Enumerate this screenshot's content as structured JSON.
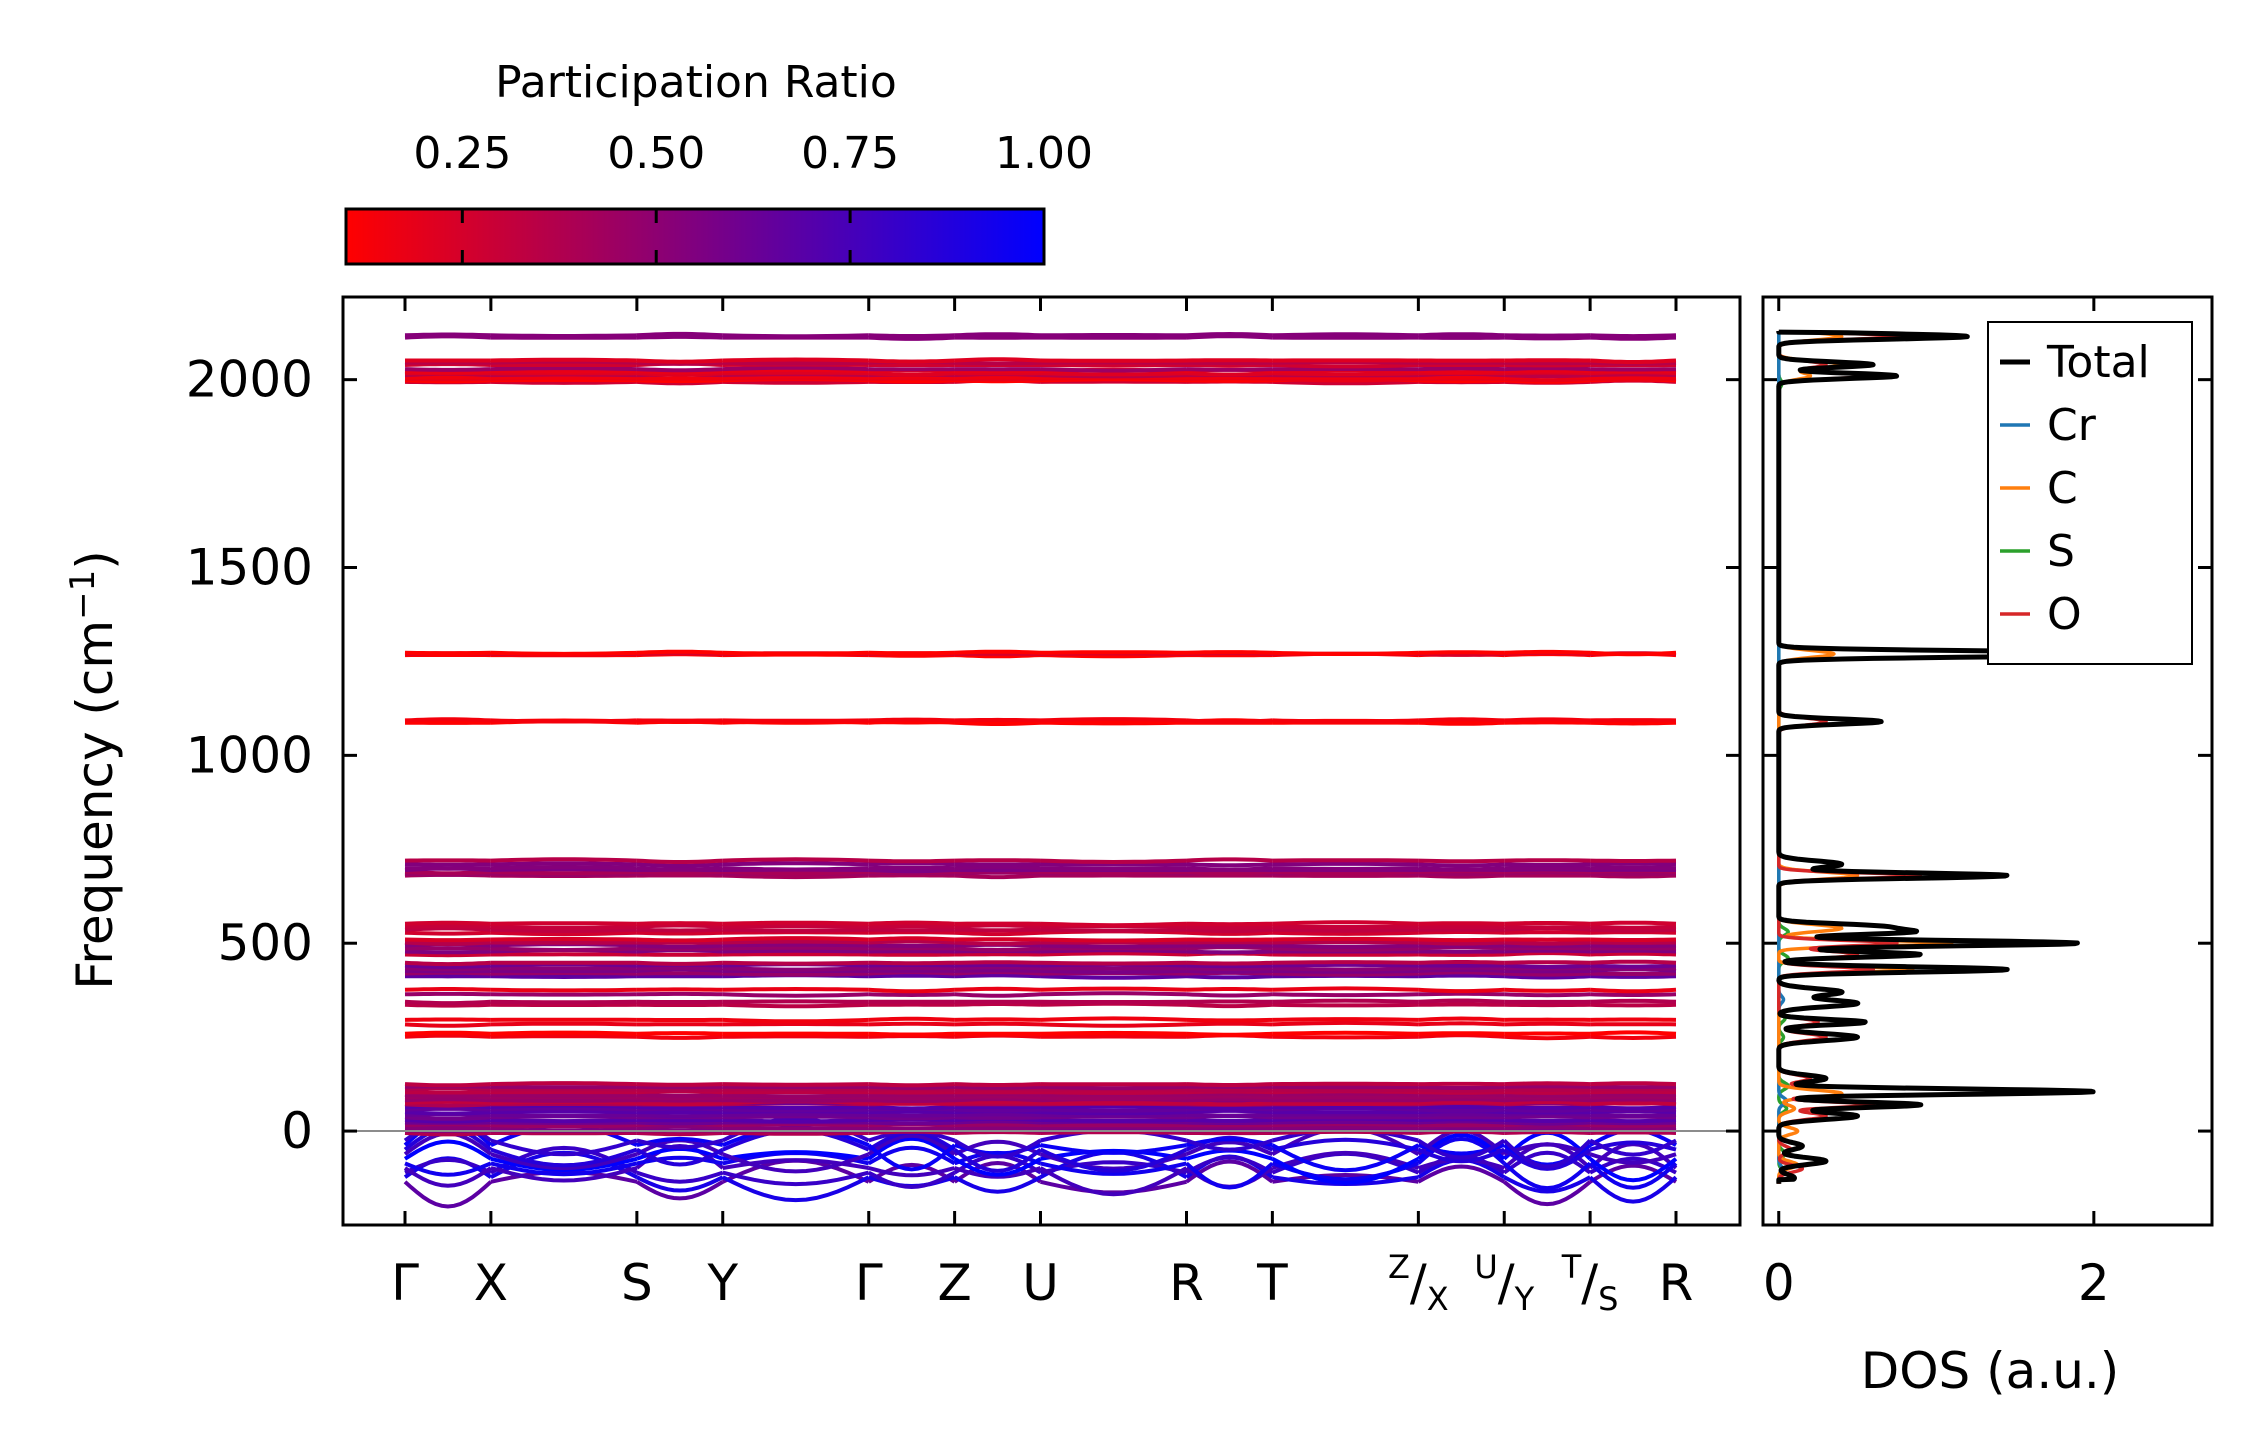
{
  "colors": {
    "cmap_low": "#ff0000",
    "cmap_high": "#0000ff",
    "total": "#000000",
    "Cr": "#1f77b4",
    "C": "#ff7f0e",
    "S": "#2ca02c",
    "O": "#d62728"
  },
  "colorbar": {
    "title": "Participation Ratio",
    "range": [
      0.1,
      1.0
    ],
    "ticks": [
      0.25,
      0.5,
      0.75,
      1.0
    ],
    "tick_labels": [
      "0.25",
      "0.50",
      "0.75",
      "1.00"
    ]
  },
  "chart_data": [
    {
      "type": "line",
      "title": "",
      "ylabel_main": "Frequency (cm",
      "ylabel_sup": "−1",
      "ylabel_end": ")",
      "ylim": [
        -250,
        2220
      ],
      "yticks": [
        0,
        500,
        1000,
        1500,
        2000
      ],
      "ytick_labels": [
        "0",
        "500",
        "1000",
        "1500",
        "2000"
      ],
      "kpoints": [
        {
          "pos": 0.0,
          "label": "Γ"
        },
        {
          "pos": 1.0,
          "label": "X"
        },
        {
          "pos": 2.7,
          "label": "S"
        },
        {
          "pos": 3.7,
          "label": "Y"
        },
        {
          "pos": 5.4,
          "label": "Γ"
        },
        {
          "pos": 6.4,
          "label": "Z"
        },
        {
          "pos": 7.4,
          "label": "U"
        },
        {
          "pos": 9.1,
          "label": "R"
        },
        {
          "pos": 10.1,
          "label": "T"
        },
        {
          "pos": 11.8,
          "label": "Z/X",
          "sup": "Z",
          "sub": "X"
        },
        {
          "pos": 12.8,
          "label": "U/Y",
          "sup": "U",
          "sub": "Y"
        },
        {
          "pos": 13.8,
          "label": "T/S",
          "sup": "T",
          "sub": "S"
        },
        {
          "pos": 14.8,
          "label": "R"
        }
      ],
      "band_groups": [
        {
          "center": -80,
          "spread": 55,
          "count": 10,
          "pr": 0.85,
          "dispersive": true
        },
        {
          "center": 40,
          "spread": 45,
          "count": 14,
          "pr": 0.55
        },
        {
          "center": 100,
          "spread": 25,
          "count": 8,
          "pr": 0.35
        },
        {
          "center": 255,
          "spread": 4,
          "count": 2,
          "pr": 0.15
        },
        {
          "center": 290,
          "spread": 6,
          "count": 2,
          "pr": 0.25
        },
        {
          "center": 340,
          "spread": 4,
          "count": 2,
          "pr": 0.45
        },
        {
          "center": 370,
          "spread": 6,
          "count": 2,
          "pr": 0.3
        },
        {
          "center": 430,
          "spread": 18,
          "count": 6,
          "pr": 0.5
        },
        {
          "center": 490,
          "spread": 20,
          "count": 6,
          "pr": 0.4
        },
        {
          "center": 540,
          "spread": 12,
          "count": 4,
          "pr": 0.3
        },
        {
          "center": 690,
          "spread": 10,
          "count": 5,
          "pr": 0.45
        },
        {
          "center": 715,
          "spread": 5,
          "count": 2,
          "pr": 0.5
        },
        {
          "center": 1090,
          "spread": 3,
          "count": 3,
          "pr": 0.1
        },
        {
          "center": 1270,
          "spread": 3,
          "count": 3,
          "pr": 0.12
        },
        {
          "center": 2000,
          "spread": 6,
          "count": 4,
          "pr": 0.2
        },
        {
          "center": 2020,
          "spread": 8,
          "count": 4,
          "pr": 0.28
        },
        {
          "center": 2045,
          "spread": 6,
          "count": 3,
          "pr": 0.25
        },
        {
          "center": 2115,
          "spread": 3,
          "count": 2,
          "pr": 0.55
        }
      ]
    },
    {
      "type": "line",
      "title": "",
      "xlabel": "DOS (a.u.)",
      "xlim": [
        -0.1,
        2.75
      ],
      "xticks": [
        0,
        2
      ],
      "xtick_labels": [
        "0",
        "2"
      ],
      "ylim": [
        -250,
        2220
      ],
      "legend": {
        "position": "top-right",
        "entries": [
          "Total",
          "Cr",
          "C",
          "S",
          "O"
        ]
      },
      "series": [
        {
          "name": "Total",
          "peaks": [
            [
              -125,
              0.1
            ],
            [
              -80,
              0.3
            ],
            [
              -40,
              0.15
            ],
            [
              40,
              0.5
            ],
            [
              70,
              0.9
            ],
            [
              105,
              2.0
            ],
            [
              140,
              0.3
            ],
            [
              250,
              0.5
            ],
            [
              290,
              0.55
            ],
            [
              340,
              0.5
            ],
            [
              370,
              0.4
            ],
            [
              430,
              1.45
            ],
            [
              470,
              0.9
            ],
            [
              500,
              1.9
            ],
            [
              530,
              0.8
            ],
            [
              545,
              0.6
            ],
            [
              680,
              1.45
            ],
            [
              710,
              0.4
            ],
            [
              1090,
              0.65
            ],
            [
              1270,
              2.6
            ],
            [
              2010,
              0.75
            ],
            [
              2040,
              0.6
            ],
            [
              2115,
              1.2
            ]
          ]
        },
        {
          "name": "Cr",
          "peaks": [
            [
              -100,
              0.02
            ],
            [
              80,
              0.05
            ],
            [
              350,
              0.03
            ]
          ]
        },
        {
          "name": "C",
          "peaks": [
            [
              -90,
              0.12
            ],
            [
              0,
              0.12
            ],
            [
              60,
              0.1
            ],
            [
              100,
              0.4
            ],
            [
              430,
              0.85
            ],
            [
              500,
              1.1
            ],
            [
              540,
              0.4
            ],
            [
              680,
              0.5
            ],
            [
              1270,
              0.35
            ],
            [
              2010,
              0.2
            ],
            [
              2040,
              0.4
            ],
            [
              2115,
              0.4
            ]
          ]
        },
        {
          "name": "S",
          "peaks": [
            [
              -110,
              0.03
            ],
            [
              -60,
              0.04
            ],
            [
              60,
              0.05
            ],
            [
              120,
              0.06
            ],
            [
              250,
              0.03
            ],
            [
              300,
              0.04
            ],
            [
              460,
              0.06
            ],
            [
              530,
              0.06
            ],
            [
              1990,
              0.02
            ]
          ]
        },
        {
          "name": "O",
          "peaks": [
            [
              -100,
              0.15
            ],
            [
              -50,
              0.08
            ],
            [
              40,
              0.3
            ],
            [
              70,
              0.6
            ],
            [
              105,
              1.8
            ],
            [
              140,
              0.2
            ],
            [
              250,
              0.3
            ],
            [
              290,
              0.25
            ],
            [
              430,
              0.6
            ],
            [
              470,
              0.5
            ],
            [
              500,
              0.75
            ],
            [
              680,
              0.9
            ],
            [
              1090,
              0.3
            ],
            [
              1270,
              2.3
            ],
            [
              2010,
              0.6
            ],
            [
              2040,
              0.3
            ],
            [
              2115,
              0.8
            ]
          ]
        }
      ]
    }
  ]
}
